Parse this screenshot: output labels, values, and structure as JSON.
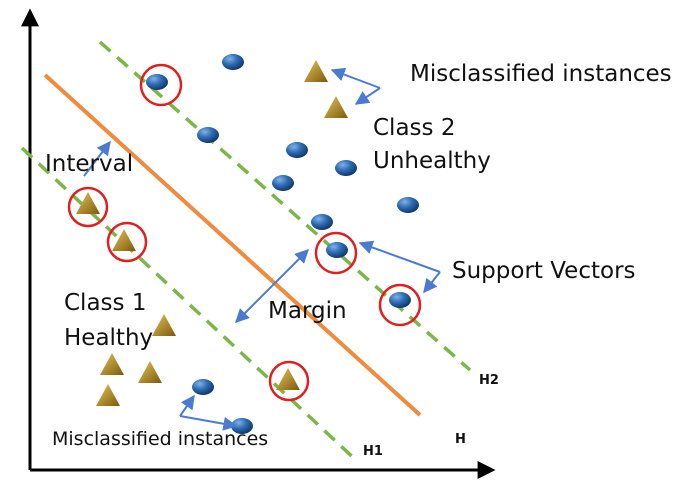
{
  "labels": {
    "misclassified_top": "Misclassified instances",
    "class2": "Class 2",
    "class2_state": "Unhealthy",
    "interval": "Interval",
    "support_vectors": "Support Vectors",
    "class1": "Class 1",
    "class1_state": "Healthy",
    "margin": "Margin",
    "misclassified_bottom": "Misclassified instances",
    "h2": "H2",
    "h1": "H1",
    "h": "H"
  }
}
